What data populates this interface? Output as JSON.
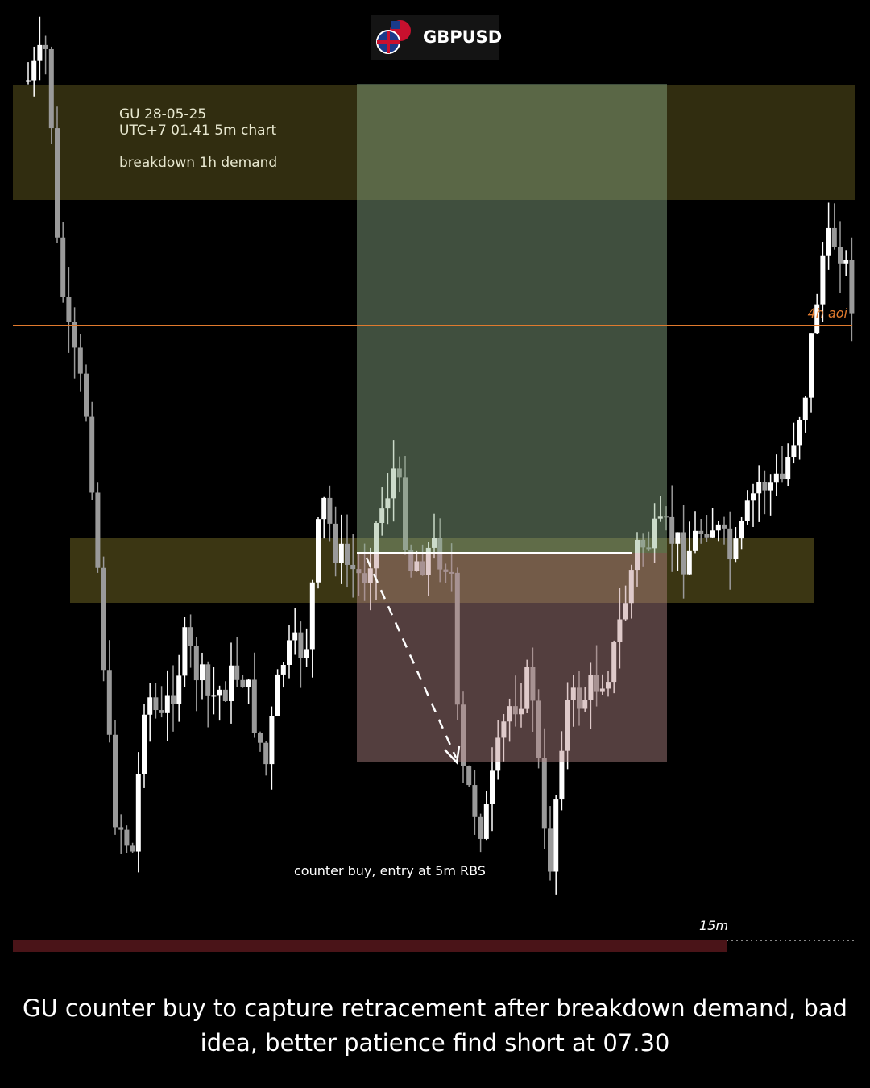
{
  "header": {
    "symbol": "GBPUSD"
  },
  "notes": {
    "date": "GU 28-05-25",
    "time": "UTC+7 01.41 5m chart",
    "setup": "breakdown 1h demand"
  },
  "level_label": "4h aoi",
  "entry_note": "counter buy, entry at 5m RBS",
  "timer_label": "15m",
  "caption": "GU counter buy to capture retracement after breakdown demand, bad idea, better patience find short at 07.30"
}
